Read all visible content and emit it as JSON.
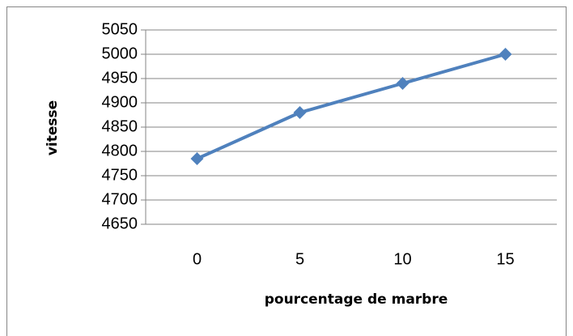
{
  "chart_data": {
    "type": "line",
    "x_label": "pourcentage de marbre",
    "y_label": "vitesse",
    "categories": [
      "0",
      "5",
      "10",
      "15"
    ],
    "series": [
      {
        "name": "vitesse",
        "color": "#4f81bd",
        "values": [
          4785,
          4880,
          4940,
          5000
        ]
      }
    ],
    "ylim": [
      4650,
      5050
    ],
    "yticks": [
      4650,
      4700,
      4750,
      4800,
      4850,
      4900,
      4950,
      5000,
      5050
    ],
    "grid": true
  }
}
